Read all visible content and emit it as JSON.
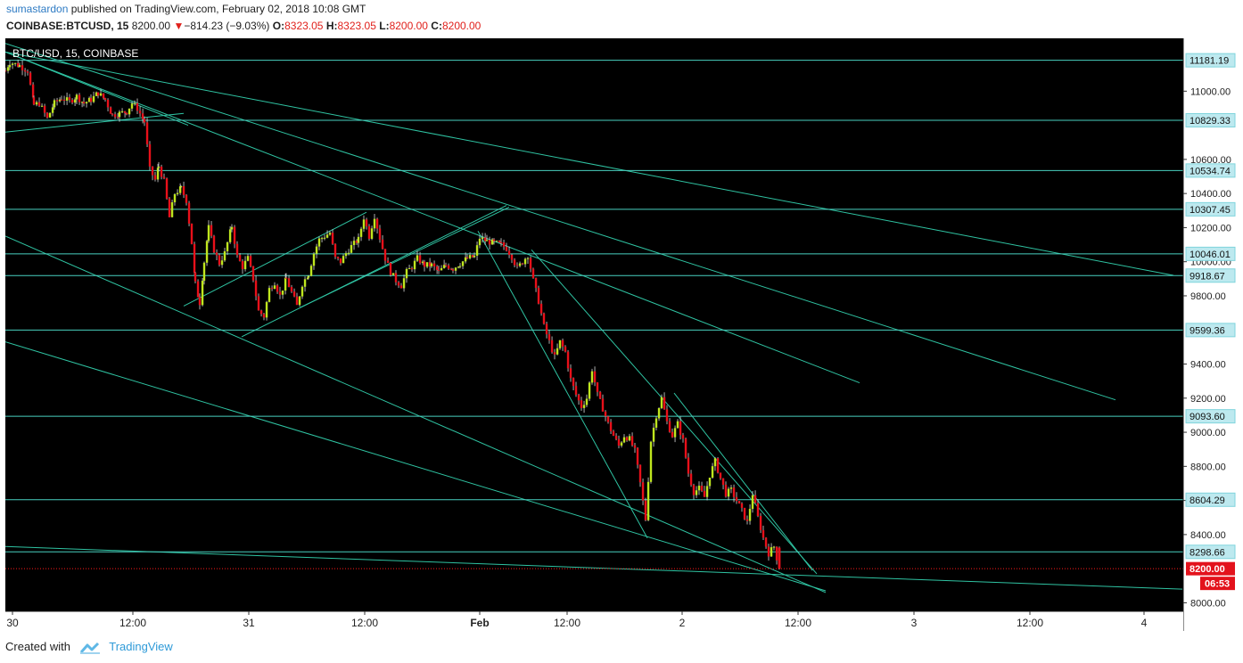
{
  "header": {
    "author": "sumastardon",
    "published_text": "published on TradingView.com, February 02, 2018 10:08 GMT",
    "symbol_interval": "COINBASE:BTCUSD, 15",
    "last": "8200.00",
    "change": "−814.23 (−9.03%)",
    "o_label": "O:",
    "o_value": "8323.05",
    "h_label": "H:",
    "h_value": "8323.05",
    "l_label": "L:",
    "l_value": "8200.00",
    "c_label": "C:",
    "c_value": "8200.00"
  },
  "footer": {
    "created_with": "Created with",
    "brand": "TradingView"
  },
  "chart_data": {
    "type": "candlestick",
    "title": "BTC/USD, 15, COINBASE",
    "ylim": [
      7950,
      11310
    ],
    "xlim": [
      0,
      1321
    ],
    "grid": false,
    "background": "#000000",
    "colors": {
      "up": "#bfe61e",
      "down": "#e8101a",
      "level": "#49d0bf",
      "trend": "#2fc3a2",
      "last": "#ff1a1a",
      "timer": "#e3121c"
    },
    "y_ticks": [
      8000,
      8400,
      8600,
      8800,
      9000,
      9200,
      9400,
      9800,
      10000,
      10200,
      10400,
      10600,
      11000
    ],
    "x_ticks": [
      {
        "x": 8,
        "label": "30"
      },
      {
        "x": 143,
        "label": "12:00"
      },
      {
        "x": 273,
        "label": "31"
      },
      {
        "x": 403,
        "label": "12:00"
      },
      {
        "x": 532,
        "label": "Feb"
      },
      {
        "x": 630,
        "label": "12:00"
      },
      {
        "x": 759,
        "label": "2"
      },
      {
        "x": 889,
        "label": "12:00"
      },
      {
        "x": 1019,
        "label": "3"
      },
      {
        "x": 1149,
        "label": "12:00"
      },
      {
        "x": 1277,
        "label": "4"
      }
    ],
    "horizontal_levels": [
      11181.19,
      10829.33,
      10534.74,
      10307.45,
      10046.01,
      9918.67,
      9599.36,
      9093.6,
      8604.29,
      8298.66
    ],
    "last_price": 8200.0,
    "countdown": "06:53",
    "trend_lines": [
      {
        "from": [
          0,
          11230
        ],
        "to": [
          1310,
          9920
        ]
      },
      {
        "from": [
          0,
          11280
        ],
        "to": [
          1245,
          9190
        ]
      },
      {
        "from": [
          0,
          11230
        ],
        "to": [
          958,
          9290
        ]
      },
      {
        "from": [
          0,
          11230
        ],
        "to": [
          205,
          10800
        ]
      },
      {
        "from": [
          0,
          10760
        ],
        "to": [
          200,
          10870
        ]
      },
      {
        "from": [
          0,
          10150
        ],
        "to": [
          920,
          8060
        ]
      },
      {
        "from": [
          0,
          9530
        ],
        "to": [
          920,
          8070
        ]
      },
      {
        "from": [
          0,
          8330
        ],
        "to": [
          1320,
          8080
        ]
      },
      {
        "from": [
          200,
          9740
        ],
        "to": [
          405,
          10290
        ]
      },
      {
        "from": [
          265,
          9560
        ],
        "to": [
          562,
          10330
        ]
      },
      {
        "from": [
          330,
          9730
        ],
        "to": [
          565,
          10320
        ]
      },
      {
        "from": [
          530,
          10180
        ],
        "to": [
          720,
          8380
        ]
      },
      {
        "from": [
          590,
          10070
        ],
        "to": [
          910,
          8170
        ]
      },
      {
        "from": [
          750,
          9230
        ],
        "to": [
          905,
          8190
        ]
      }
    ],
    "candle_path": [
      [
        0,
        11120
      ],
      [
        5,
        11170
      ],
      [
        16,
        11150
      ],
      [
        25,
        11120
      ],
      [
        32,
        10920
      ],
      [
        38,
        10930
      ],
      [
        47,
        10840
      ],
      [
        55,
        10930
      ],
      [
        63,
        10960
      ],
      [
        72,
        10940
      ],
      [
        80,
        10970
      ],
      [
        88,
        10930
      ],
      [
        96,
        10950
      ],
      [
        104,
        10990
      ],
      [
        112,
        10950
      ],
      [
        120,
        10860
      ],
      [
        128,
        10870
      ],
      [
        136,
        10880
      ],
      [
        142,
        10930
      ],
      [
        148,
        10900
      ],
      [
        156,
        10820
      ],
      [
        162,
        10540
      ],
      [
        168,
        10480
      ],
      [
        172,
        10560
      ],
      [
        178,
        10470
      ],
      [
        184,
        10260
      ],
      [
        190,
        10400
      ],
      [
        197,
        10430
      ],
      [
        203,
        10360
      ],
      [
        209,
        10110
      ],
      [
        213,
        9870
      ],
      [
        218,
        9760
      ],
      [
        223,
        10000
      ],
      [
        228,
        10200
      ],
      [
        234,
        10070
      ],
      [
        240,
        9990
      ],
      [
        246,
        10050
      ],
      [
        254,
        10210
      ],
      [
        260,
        10030
      ],
      [
        266,
        9970
      ],
      [
        272,
        10020
      ],
      [
        278,
        9900
      ],
      [
        284,
        9710
      ],
      [
        290,
        9680
      ],
      [
        296,
        9840
      ],
      [
        302,
        9880
      ],
      [
        308,
        9800
      ],
      [
        315,
        9900
      ],
      [
        321,
        9820
      ],
      [
        327,
        9740
      ],
      [
        333,
        9870
      ],
      [
        340,
        9930
      ],
      [
        346,
        10050
      ],
      [
        352,
        10130
      ],
      [
        358,
        10150
      ],
      [
        364,
        10170
      ],
      [
        370,
        10020
      ],
      [
        376,
        10000
      ],
      [
        382,
        10050
      ],
      [
        388,
        10090
      ],
      [
        396,
        10130
      ],
      [
        402,
        10260
      ],
      [
        408,
        10150
      ],
      [
        414,
        10270
      ],
      [
        420,
        10140
      ],
      [
        426,
        10020
      ],
      [
        432,
        9940
      ],
      [
        438,
        9890
      ],
      [
        444,
        9860
      ],
      [
        450,
        9940
      ],
      [
        456,
        9970
      ],
      [
        462,
        10020
      ],
      [
        470,
        9980
      ],
      [
        478,
        9980
      ],
      [
        486,
        9940
      ],
      [
        494,
        9980
      ],
      [
        502,
        9960
      ],
      [
        510,
        9990
      ],
      [
        518,
        10020
      ],
      [
        526,
        10030
      ],
      [
        532,
        10140
      ],
      [
        540,
        10120
      ],
      [
        548,
        10110
      ],
      [
        556,
        10100
      ],
      [
        562,
        10080
      ],
      [
        568,
        10030
      ],
      [
        574,
        9960
      ],
      [
        580,
        10000
      ],
      [
        586,
        10040
      ],
      [
        592,
        9890
      ],
      [
        598,
        9770
      ],
      [
        604,
        9620
      ],
      [
        610,
        9530
      ],
      [
        616,
        9440
      ],
      [
        622,
        9530
      ],
      [
        628,
        9470
      ],
      [
        634,
        9310
      ],
      [
        640,
        9220
      ],
      [
        646,
        9150
      ],
      [
        652,
        9200
      ],
      [
        658,
        9370
      ],
      [
        664,
        9220
      ],
      [
        670,
        9140
      ],
      [
        676,
        9050
      ],
      [
        682,
        8980
      ],
      [
        688,
        8920
      ],
      [
        694,
        8980
      ],
      [
        700,
        8960
      ],
      [
        706,
        8890
      ],
      [
        712,
        8700
      ],
      [
        718,
        8490
      ],
      [
        724,
        8950
      ],
      [
        730,
        9100
      ],
      [
        736,
        9200
      ],
      [
        742,
        9060
      ],
      [
        748,
        8980
      ],
      [
        754,
        9050
      ],
      [
        760,
        8950
      ],
      [
        766,
        8760
      ],
      [
        772,
        8650
      ],
      [
        778,
        8670
      ],
      [
        784,
        8620
      ],
      [
        790,
        8750
      ],
      [
        796,
        8830
      ],
      [
        802,
        8730
      ],
      [
        808,
        8640
      ],
      [
        814,
        8660
      ],
      [
        820,
        8600
      ],
      [
        826,
        8540
      ],
      [
        832,
        8470
      ],
      [
        838,
        8640
      ],
      [
        844,
        8500
      ],
      [
        850,
        8380
      ],
      [
        856,
        8290
      ],
      [
        862,
        8330
      ],
      [
        868,
        8200
      ]
    ]
  }
}
